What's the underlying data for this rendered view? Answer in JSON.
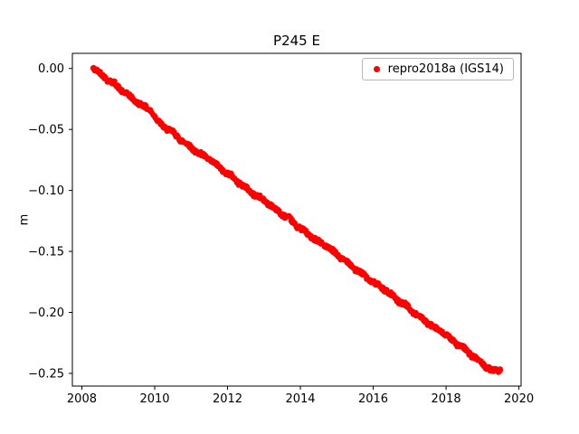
{
  "figure": {
    "title": "P245 E",
    "ylabel": "m"
  },
  "legend": {
    "label": "repro2018a (IGS14)",
    "marker_color": "#ff0000"
  },
  "chart_data": {
    "type": "scatter",
    "title": "P245 E",
    "xlabel": "",
    "ylabel": "m",
    "grid": false,
    "legend_position": "upper right",
    "marker": "dot",
    "marker_color": "#ff0000",
    "xlim": [
      2007.74,
      2020.06
    ],
    "ylim": [
      -0.2604,
      0.0124
    ],
    "xticks": [
      2008,
      2010,
      2012,
      2014,
      2016,
      2018,
      2020
    ],
    "xtick_labels": [
      "2008",
      "2010",
      "2012",
      "2014",
      "2016",
      "2018",
      "2020"
    ],
    "yticks": [
      0.0,
      -0.05,
      -0.1,
      -0.15,
      -0.2,
      -0.25
    ],
    "ytick_labels": [
      "0.00",
      "−0.05",
      "−0.10",
      "−0.15",
      "−0.20",
      "−0.25"
    ],
    "series": [
      {
        "name": "repro2018a (IGS14)",
        "color": "#ff0000",
        "x": [
          2008.3,
          2008.5,
          2008.7,
          2008.9,
          2009.1,
          2009.3,
          2009.5,
          2009.7,
          2009.9,
          2010.1,
          2010.3,
          2010.5,
          2010.7,
          2010.9,
          2011.1,
          2011.3,
          2011.5,
          2011.7,
          2011.9,
          2012.1,
          2012.3,
          2012.5,
          2012.7,
          2012.9,
          2013.1,
          2013.3,
          2013.5,
          2013.7,
          2013.9,
          2014.1,
          2014.3,
          2014.5,
          2014.7,
          2014.9,
          2015.1,
          2015.3,
          2015.5,
          2015.7,
          2015.9,
          2016.1,
          2016.3,
          2016.5,
          2016.7,
          2016.9,
          2017.1,
          2017.3,
          2017.5,
          2017.7,
          2017.9,
          2018.1,
          2018.3,
          2018.5,
          2018.7,
          2018.9,
          2019.1,
          2019.3,
          2019.5
        ],
        "y": [
          0.0,
          -0.0032,
          -0.0097,
          -0.0118,
          -0.0189,
          -0.0217,
          -0.0281,
          -0.0302,
          -0.0354,
          -0.0431,
          -0.0495,
          -0.0517,
          -0.0588,
          -0.0615,
          -0.068,
          -0.0701,
          -0.0753,
          -0.0785,
          -0.085,
          -0.0871,
          -0.0942,
          -0.097,
          -0.1034,
          -0.1055,
          -0.1108,
          -0.114,
          -0.1204,
          -0.1225,
          -0.1297,
          -0.1324,
          -0.1388,
          -0.141,
          -0.1462,
          -0.1494,
          -0.1559,
          -0.158,
          -0.1651,
          -0.1678,
          -0.1743,
          -0.1764,
          -0.1816,
          -0.1849,
          -0.1913,
          -0.1934,
          -0.2006,
          -0.2033,
          -0.2097,
          -0.2118,
          -0.2171,
          -0.2203,
          -0.2267,
          -0.2289,
          -0.236,
          -0.2387,
          -0.2452,
          -0.2473,
          -0.248
        ]
      }
    ]
  }
}
